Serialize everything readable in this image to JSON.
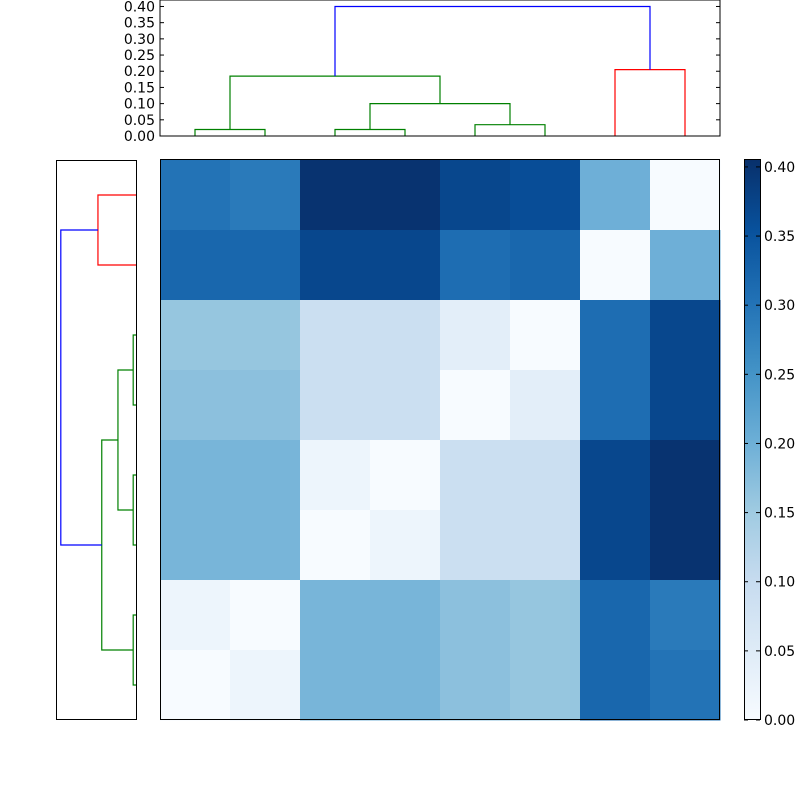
{
  "chart_data": [
    {
      "type": "dendrogram",
      "panel": "top",
      "ylim": [
        0,
        0.42
      ],
      "yticks": [
        0.0,
        0.05,
        0.1,
        0.15,
        0.2,
        0.25,
        0.3,
        0.35,
        0.4
      ],
      "ytick_labels": [
        "0.00",
        "0.05",
        "0.10",
        "0.15",
        "0.20",
        "0.25",
        "0.30",
        "0.35",
        "0.40"
      ],
      "leaf_count": 8,
      "links": [
        {
          "left": 0.5,
          "right": 1.5,
          "left_height": 0.0,
          "right_height": 0.0,
          "height": 0.02,
          "color": "#008000"
        },
        {
          "left": 2.5,
          "right": 3.5,
          "left_height": 0.0,
          "right_height": 0.0,
          "height": 0.02,
          "color": "#008000"
        },
        {
          "left": 4.5,
          "right": 5.5,
          "left_height": 0.0,
          "right_height": 0.0,
          "height": 0.035,
          "color": "#008000"
        },
        {
          "left": 3.0,
          "right": 5.0,
          "left_height": 0.02,
          "right_height": 0.035,
          "height": 0.1,
          "color": "#008000"
        },
        {
          "left": 1.0,
          "right": 4.0,
          "left_height": 0.02,
          "right_height": 0.1,
          "height": 0.185,
          "color": "#008000"
        },
        {
          "left": 6.5,
          "right": 7.5,
          "left_height": 0.0,
          "right_height": 0.0,
          "height": 0.205,
          "color": "#ff0000"
        },
        {
          "left": 2.5,
          "right": 7.0,
          "left_height": 0.185,
          "right_height": 0.205,
          "height": 0.4,
          "color": "#0000ff"
        }
      ]
    },
    {
      "type": "dendrogram",
      "panel": "left",
      "orientation": "left",
      "leaf_count": 8,
      "height_range": [
        0,
        0.42
      ],
      "links": [
        {
          "a": 0.5,
          "b": 1.5,
          "a_height": 0.0,
          "b_height": 0.0,
          "height": 0.205,
          "color": "#ff0000"
        },
        {
          "a": 2.5,
          "b": 3.5,
          "a_height": 0.0,
          "b_height": 0.0,
          "height": 0.02,
          "color": "#008000"
        },
        {
          "a": 4.5,
          "b": 5.5,
          "a_height": 0.0,
          "b_height": 0.0,
          "height": 0.02,
          "color": "#008000"
        },
        {
          "a": 6.5,
          "b": 7.5,
          "a_height": 0.0,
          "b_height": 0.0,
          "height": 0.02,
          "color": "#008000"
        },
        {
          "a": 3.0,
          "b": 5.0,
          "a_height": 0.02,
          "b_height": 0.02,
          "height": 0.1,
          "color": "#008000"
        },
        {
          "a": 4.0,
          "b": 7.0,
          "a_height": 0.1,
          "b_height": 0.02,
          "height": 0.185,
          "color": "#008000"
        },
        {
          "a": 1.0,
          "b": 5.5,
          "a_height": 0.205,
          "b_height": 0.185,
          "height": 0.4,
          "color": "#0000ff"
        }
      ]
    },
    {
      "type": "heatmap",
      "panel": "main",
      "colormap": "Blues",
      "vmin": 0.0,
      "vmax": 0.405,
      "colormap_stops": [
        [
          0.0,
          "#f7fbff"
        ],
        [
          0.125,
          "#deebf7"
        ],
        [
          0.25,
          "#c6dbef"
        ],
        [
          0.375,
          "#9ecae1"
        ],
        [
          0.5,
          "#6baed6"
        ],
        [
          0.625,
          "#4292c6"
        ],
        [
          0.75,
          "#2171b5"
        ],
        [
          0.875,
          "#08519c"
        ],
        [
          1.0,
          "#08306b"
        ]
      ],
      "values": [
        [
          0.3,
          0.29,
          0.4,
          0.4,
          0.37,
          0.36,
          0.2,
          0.0
        ],
        [
          0.32,
          0.32,
          0.37,
          0.37,
          0.31,
          0.32,
          0.0,
          0.2
        ],
        [
          0.16,
          0.16,
          0.09,
          0.09,
          0.04,
          0.0,
          0.31,
          0.37
        ],
        [
          0.17,
          0.17,
          0.09,
          0.09,
          0.0,
          0.04,
          0.31,
          0.37
        ],
        [
          0.19,
          0.19,
          0.02,
          0.0,
          0.09,
          0.09,
          0.37,
          0.4
        ],
        [
          0.19,
          0.19,
          0.0,
          0.02,
          0.09,
          0.09,
          0.37,
          0.4
        ],
        [
          0.02,
          0.0,
          0.19,
          0.19,
          0.17,
          0.16,
          0.32,
          0.29
        ],
        [
          0.0,
          0.02,
          0.19,
          0.19,
          0.17,
          0.16,
          0.32,
          0.3
        ]
      ]
    },
    {
      "type": "colorbar",
      "panel": "right",
      "range": [
        0.0,
        0.405
      ],
      "ticks": [
        0.0,
        0.05,
        0.1,
        0.15,
        0.2,
        0.25,
        0.3,
        0.35,
        0.4
      ],
      "tick_labels": [
        "0.00",
        "0.05",
        "0.10",
        "0.15",
        "0.20",
        "0.25",
        "0.30",
        "0.35",
        "0.40"
      ]
    }
  ]
}
